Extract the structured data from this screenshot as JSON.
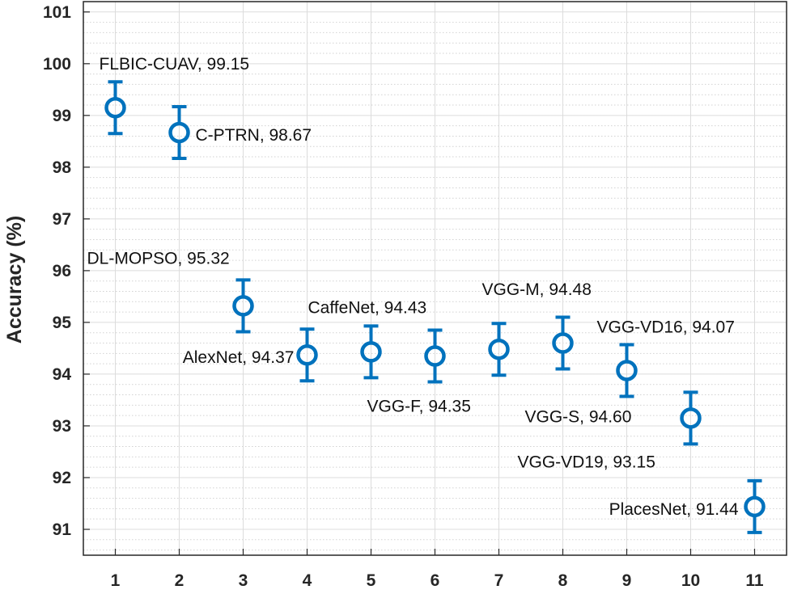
{
  "chart_data": {
    "type": "scatter",
    "ylabel": "Accuracy (%)",
    "xlabel": "",
    "xlim": [
      0.5,
      11.5
    ],
    "ylim": [
      90.5,
      101.2
    ],
    "x_ticks": [
      1,
      2,
      3,
      4,
      5,
      6,
      7,
      8,
      9,
      10,
      11
    ],
    "y_ticks": [
      91,
      92,
      93,
      94,
      95,
      96,
      97,
      98,
      99,
      100,
      101
    ],
    "grid": true,
    "minor_grid": true,
    "marker_color": "#0072BD",
    "error_bar": 0.5,
    "points": [
      {
        "x": 1,
        "y": 99.15,
        "label": "FLBIC-CUAV, 99.15"
      },
      {
        "x": 2,
        "y": 98.67,
        "label": "C-PTRN, 98.67"
      },
      {
        "x": 3,
        "y": 95.32,
        "label": "DL-MOPSO, 95.32"
      },
      {
        "x": 4,
        "y": 94.37,
        "label": "AlexNet, 94.37"
      },
      {
        "x": 5,
        "y": 94.43,
        "label": "CaffeNet, 94.43"
      },
      {
        "x": 6,
        "y": 94.35,
        "label": "VGG-F, 94.35"
      },
      {
        "x": 7,
        "y": 94.48,
        "label": "VGG-M, 94.48"
      },
      {
        "x": 8,
        "y": 94.6,
        "label": "VGG-S, 94.60"
      },
      {
        "x": 9,
        "y": 94.07,
        "label": "VGG-VD16, 94.07"
      },
      {
        "x": 10,
        "y": 93.15,
        "label": "VGG-VD19, 93.15"
      },
      {
        "x": 11,
        "y": 91.44,
        "label": "PlacesNet, 91.44"
      }
    ]
  }
}
